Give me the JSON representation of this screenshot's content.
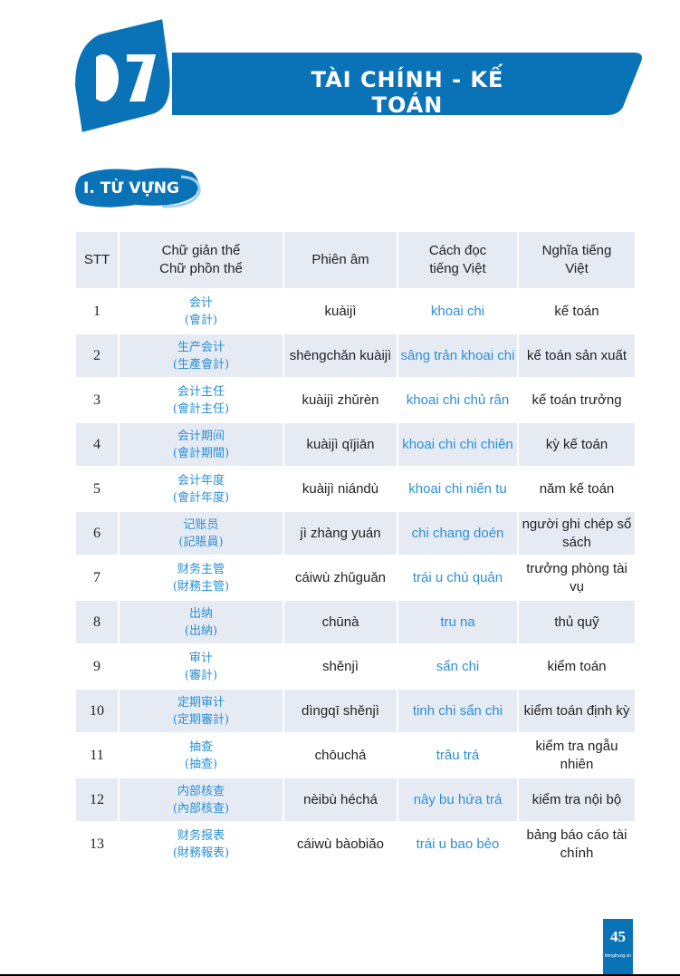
{
  "header": {
    "chapter_number": "07",
    "chapter_title": "TÀI CHÍNH - KẾ TOÁN",
    "accent_color": "#0a73b7"
  },
  "section": {
    "title": "I. TỪ VỰNG"
  },
  "table": {
    "columns": [
      "STT",
      "Chữ giản thể\nChữ phồn thể",
      "Phiên âm",
      "Cách đọc\ntiếng Việt",
      "Nghĩa tiếng\nViệt"
    ],
    "rows": [
      {
        "stt": "1",
        "simp": "会计",
        "trad": "(會計)",
        "pinyin": "kuàijì",
        "viet": "khoai chi",
        "meaning": "kế toán"
      },
      {
        "stt": "2",
        "simp": "生产会计",
        "trad": "(生產會計)",
        "pinyin": "shēngchǎn kuàijì",
        "viet": "sâng trản khoai chi",
        "meaning": "kế toán sản xuất"
      },
      {
        "stt": "3",
        "simp": "会计主任",
        "trad": "(會計主任)",
        "pinyin": "kuàijì zhǔrèn",
        "viet": "khoai chi chủ rân",
        "meaning": "kế toán trưởng"
      },
      {
        "stt": "4",
        "simp": "会计期间",
        "trad": "(會計期間)",
        "pinyin": "kuàijì qījiān",
        "viet": "khoai chi chi chiên",
        "meaning": "kỳ kế toán"
      },
      {
        "stt": "5",
        "simp": "会计年度",
        "trad": "(會計年度)",
        "pinyin": "kuàijì niándù",
        "viet": "khoai chi niến tu",
        "meaning": "năm kế toán"
      },
      {
        "stt": "6",
        "simp": "记账员",
        "trad": "(記賬員)",
        "pinyin": "jì zhàng yuán",
        "viet": "chi chang doén",
        "meaning": "người ghi chép sổ sách"
      },
      {
        "stt": "7",
        "simp": "财务主管",
        "trad": "(財務主管)",
        "pinyin": "cáiwù zhǔguǎn",
        "viet": "trái u chú quản",
        "meaning": "trưởng phòng tài vụ"
      },
      {
        "stt": "8",
        "simp": "出纳",
        "trad": "(出納)",
        "pinyin": "chūnà",
        "viet": "tru na",
        "meaning": "thủ quỹ"
      },
      {
        "stt": "9",
        "simp": "审计",
        "trad": "(審計)",
        "pinyin": "shěnjì",
        "viet": "sẩn chi",
        "meaning": "kiểm toán"
      },
      {
        "stt": "10",
        "simp": "定期审计",
        "trad": "(定期審計)",
        "pinyin": "dìngqī shěnjì",
        "viet": "tinh chi sẩn chi",
        "meaning": "kiểm toán định kỳ"
      },
      {
        "stt": "11",
        "simp": "抽查",
        "trad": "(抽查)",
        "pinyin": "chōuchá",
        "viet": "trâu trá",
        "meaning": "kiểm tra ngẫu nhiên"
      },
      {
        "stt": "12",
        "simp": "内部核查",
        "trad": "(內部核查)",
        "pinyin": "nèibù héchá",
        "viet": "nây bu hứa trá",
        "meaning": "kiểm tra nội bộ"
      },
      {
        "stt": "13",
        "simp": "财务报表",
        "trad": "(財務報表)",
        "pinyin": "cáiwù bàobiǎo",
        "viet": "trái u bao bẻo",
        "meaning": "bảng báo cáo tài chính"
      }
    ]
  },
  "footer": {
    "page_number": "45",
    "site": "tiengtrung.vn"
  }
}
